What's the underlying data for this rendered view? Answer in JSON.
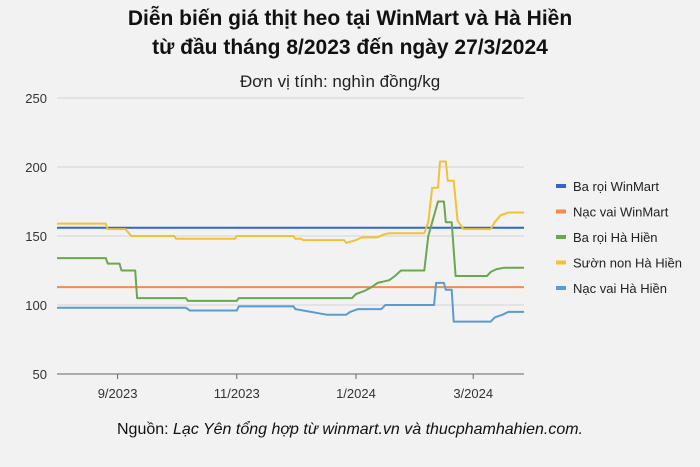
{
  "chart_data": {
    "type": "line",
    "title": [
      "Diễn biến giá thịt heo tại WinMart và Hà Hiền",
      "từ đầu tháng 8/2023 đến ngày 27/3/2024"
    ],
    "ylabel": "Đơn vị tính: nghìn đồng/kg",
    "ylim": [
      50,
      250
    ],
    "yticks": [
      50,
      100,
      150,
      200,
      250
    ],
    "xlim": [
      "2023-08-01",
      "2024-03-27"
    ],
    "xticks": [
      {
        "date": "2023-09-01",
        "label": "9/2023"
      },
      {
        "date": "2023-11-01",
        "label": "11/2023"
      },
      {
        "date": "2024-01-01",
        "label": "1/2024"
      },
      {
        "date": "2024-03-01",
        "label": "3/2024"
      }
    ],
    "grid": true,
    "legend_position": "right",
    "series": [
      {
        "name": "Ba rọi WinMart",
        "color": "#3366cc",
        "points": [
          [
            "2023-08-01",
            156
          ],
          [
            "2024-03-27",
            156
          ]
        ]
      },
      {
        "name": "Nạc vai WinMart",
        "color": "#f08c50",
        "points": [
          [
            "2023-08-01",
            113
          ],
          [
            "2024-03-27",
            113
          ]
        ]
      },
      {
        "name": "Ba rọi Hà Hiền",
        "color": "#6aa84f",
        "points": [
          [
            "2023-08-01",
            134
          ],
          [
            "2023-08-26",
            134
          ],
          [
            "2023-08-27",
            130
          ],
          [
            "2023-09-02",
            130
          ],
          [
            "2023-09-03",
            125
          ],
          [
            "2023-09-10",
            125
          ],
          [
            "2023-09-11",
            105
          ],
          [
            "2023-10-06",
            105
          ],
          [
            "2023-10-07",
            103
          ],
          [
            "2023-11-01",
            103
          ],
          [
            "2023-11-02",
            105
          ],
          [
            "2023-12-30",
            105
          ],
          [
            "2024-01-01",
            108
          ],
          [
            "2024-01-05",
            110
          ],
          [
            "2024-01-09",
            113
          ],
          [
            "2024-01-12",
            116
          ],
          [
            "2024-01-18",
            118
          ],
          [
            "2024-01-21",
            121
          ],
          [
            "2024-01-24",
            125
          ],
          [
            "2024-02-05",
            125
          ],
          [
            "2024-02-07",
            150
          ],
          [
            "2024-02-09",
            160
          ],
          [
            "2024-02-12",
            175
          ],
          [
            "2024-02-15",
            175
          ],
          [
            "2024-02-16",
            160
          ],
          [
            "2024-02-19",
            160
          ],
          [
            "2024-02-21",
            121
          ],
          [
            "2024-03-08",
            121
          ],
          [
            "2024-03-10",
            124
          ],
          [
            "2024-03-13",
            126
          ],
          [
            "2024-03-17",
            127
          ],
          [
            "2024-03-27",
            127
          ]
        ]
      },
      {
        "name": "Sườn non Hà Hiền",
        "color": "#f1c232",
        "points": [
          [
            "2023-08-01",
            159
          ],
          [
            "2023-08-26",
            159
          ],
          [
            "2023-08-27",
            155
          ],
          [
            "2023-09-05",
            155
          ],
          [
            "2023-09-08",
            150
          ],
          [
            "2023-09-30",
            150
          ],
          [
            "2023-10-01",
            148
          ],
          [
            "2023-10-31",
            148
          ],
          [
            "2023-11-01",
            150
          ],
          [
            "2023-11-30",
            150
          ],
          [
            "2023-12-01",
            148
          ],
          [
            "2023-12-04",
            148
          ],
          [
            "2023-12-05",
            147
          ],
          [
            "2023-12-26",
            147
          ],
          [
            "2023-12-27",
            145
          ],
          [
            "2024-01-01",
            147
          ],
          [
            "2024-01-04",
            149
          ],
          [
            "2024-01-12",
            149
          ],
          [
            "2024-01-15",
            151
          ],
          [
            "2024-01-18",
            152
          ],
          [
            "2024-02-05",
            152
          ],
          [
            "2024-02-07",
            160
          ],
          [
            "2024-02-09",
            185
          ],
          [
            "2024-02-12",
            185
          ],
          [
            "2024-02-13",
            204
          ],
          [
            "2024-02-16",
            204
          ],
          [
            "2024-02-17",
            190
          ],
          [
            "2024-02-20",
            190
          ],
          [
            "2024-02-22",
            161
          ],
          [
            "2024-02-25",
            155
          ],
          [
            "2024-03-10",
            155
          ],
          [
            "2024-03-12",
            160
          ],
          [
            "2024-03-15",
            165
          ],
          [
            "2024-03-19",
            167
          ],
          [
            "2024-03-27",
            167
          ]
        ]
      },
      {
        "name": "Nạc vai Hà Hiền",
        "color": "#5b9bd5",
        "points": [
          [
            "2023-08-01",
            98
          ],
          [
            "2023-10-06",
            98
          ],
          [
            "2023-10-08",
            96
          ],
          [
            "2023-11-01",
            96
          ],
          [
            "2023-11-02",
            99
          ],
          [
            "2023-11-30",
            99
          ],
          [
            "2023-12-01",
            97
          ],
          [
            "2023-12-09",
            95
          ],
          [
            "2023-12-17",
            93
          ],
          [
            "2023-12-27",
            93
          ],
          [
            "2023-12-29",
            95
          ],
          [
            "2024-01-02",
            97
          ],
          [
            "2024-01-14",
            97
          ],
          [
            "2024-01-16",
            100
          ],
          [
            "2024-02-10",
            100
          ],
          [
            "2024-02-11",
            116
          ],
          [
            "2024-02-15",
            116
          ],
          [
            "2024-02-16",
            111
          ],
          [
            "2024-02-19",
            111
          ],
          [
            "2024-02-20",
            88
          ],
          [
            "2024-03-10",
            88
          ],
          [
            "2024-03-12",
            91
          ],
          [
            "2024-03-16",
            93
          ],
          [
            "2024-03-19",
            95
          ],
          [
            "2024-03-27",
            95
          ]
        ]
      }
    ]
  },
  "source": {
    "prefix": "Nguồn: ",
    "text": "Lạc Yên tổng hợp từ winmart.vn và thucphamhahien.com."
  }
}
